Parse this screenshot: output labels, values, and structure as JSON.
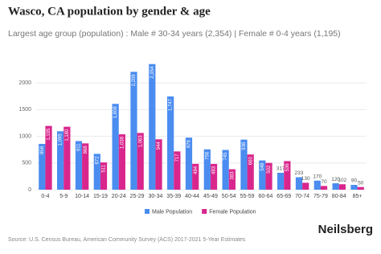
{
  "chart_data": {
    "type": "bar",
    "title": "Wasco, CA population by gender & age",
    "subtitle": "Largest age group (population) : Male # 30-34 years (2,354) | Female # 0-4 years (1,195)",
    "source": "Source: U.S. Census Bureau, American Community Survey (ACS) 2017-2021 5-Year Estimates",
    "brand": "Neilsberg",
    "categories": [
      "0-4",
      "5-9",
      "10-14",
      "15-19",
      "20-24",
      "25-29",
      "30-34",
      "35-39",
      "40-44",
      "45-49",
      "50-54",
      "55-59",
      "60-64",
      "65-69",
      "70-74",
      "75-79",
      "80-84",
      "85+"
    ],
    "series": [
      {
        "name": "Male Population",
        "color": "#4a8cf0",
        "values": [
          858,
          1095,
          911,
          672,
          1608,
          2208,
          2354,
          1747,
          976,
          756,
          745,
          938,
          548,
          317,
          233,
          170,
          120,
          90
        ],
        "value_labels": [
          "858",
          "1,095",
          "911",
          "672",
          "1,608",
          "2,208",
          "2,354",
          "1,747",
          "976",
          "756",
          "745",
          "938",
          "548",
          "317",
          "233",
          "170",
          "120",
          "90"
        ]
      },
      {
        "name": "Female Population",
        "color": "#d9268d",
        "values": [
          1195,
          1180,
          868,
          511,
          1038,
          1063,
          944,
          717,
          484,
          483,
          383,
          660,
          502,
          536,
          130,
          70,
          102,
          50
        ],
        "value_labels": [
          "1,195",
          "1,180",
          "868",
          "511",
          "1,038",
          "1,063",
          "944",
          "717",
          "484",
          "483",
          "383",
          "660",
          "502",
          "536",
          "130",
          "70",
          "102",
          "50"
        ]
      }
    ],
    "ylim": [
      0,
      2500
    ],
    "yticks": [
      0,
      500,
      1000,
      1500,
      2000
    ],
    "grid": true
  }
}
